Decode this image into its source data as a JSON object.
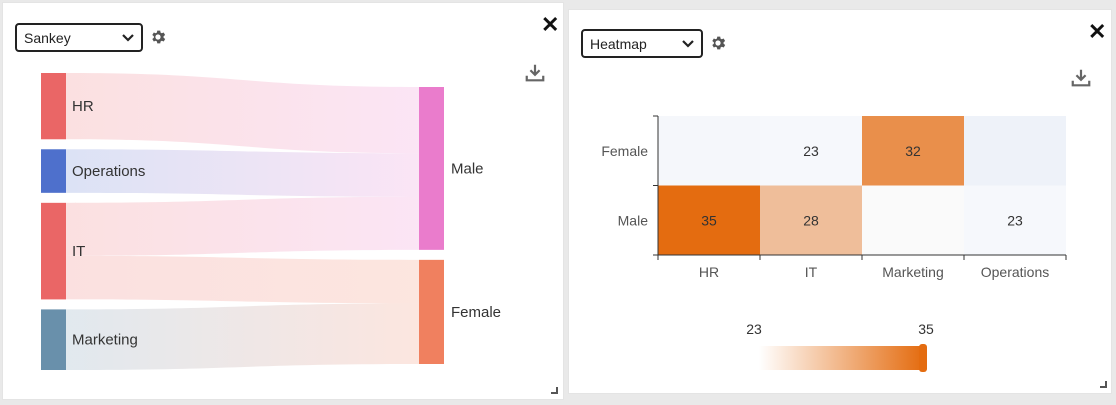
{
  "left_panel": {
    "dropdown_value": "Sankey",
    "close_label": "✕"
  },
  "right_panel": {
    "dropdown_value": "Heatmap",
    "close_label": "✕"
  },
  "colors": {
    "HR": "#ea6666",
    "Operations": "#4e70cc",
    "IT": "#ea6666",
    "Marketing": "#6990ab",
    "Male": "#ea7ccc",
    "Female": "#f0805f",
    "heat_low": "#f6f8fc",
    "heat_high": "#e46c10"
  },
  "chart_data": [
    {
      "type": "sankey",
      "nodes": [
        "HR",
        "Operations",
        "IT",
        "Marketing",
        "Male",
        "Female"
      ],
      "links": [
        {
          "source": "HR",
          "target": "Male",
          "value": 35
        },
        {
          "source": "Operations",
          "target": "Male",
          "value": 23
        },
        {
          "source": "IT",
          "target": "Male",
          "value": 28
        },
        {
          "source": "IT",
          "target": "Female",
          "value": 23
        },
        {
          "source": "Marketing",
          "target": "Female",
          "value": 32
        }
      ]
    },
    {
      "type": "heatmap",
      "x_categories": [
        "HR",
        "IT",
        "Marketing",
        "Operations"
      ],
      "y_categories": [
        "Male",
        "Female"
      ],
      "values": [
        {
          "x": "HR",
          "y": "Male",
          "value": 35
        },
        {
          "x": "IT",
          "y": "Male",
          "value": 28
        },
        {
          "x": "Operations",
          "y": "Male",
          "value": 23
        },
        {
          "x": "IT",
          "y": "Female",
          "value": 23
        },
        {
          "x": "Marketing",
          "y": "Female",
          "value": 32
        }
      ],
      "visual_map": {
        "min": 23,
        "max": 35,
        "min_label": "23",
        "max_label": "35"
      }
    }
  ]
}
